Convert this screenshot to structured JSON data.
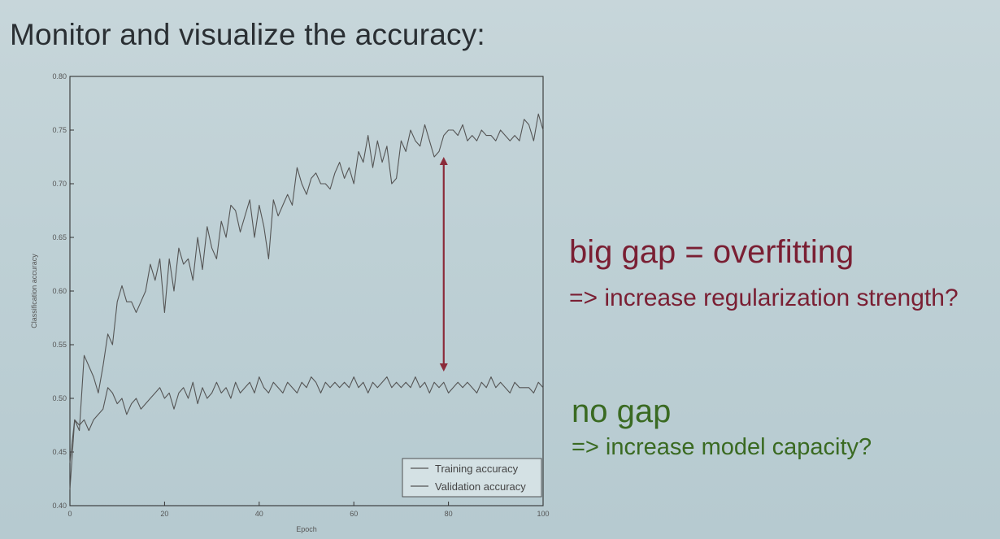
{
  "slide": {
    "title": "Monitor and visualize the accuracy:"
  },
  "annotations": {
    "overfit_title": "big gap = overfitting",
    "overfit_sub": "=> increase regularization strength?",
    "nogap_title": "no gap",
    "nogap_sub": "=> increase model capacity?"
  },
  "colors": {
    "overfit": "#7a1f33",
    "nogap": "#3a6a22",
    "arrow": "#8b2b3a",
    "line": "#555555"
  },
  "chart_data": {
    "type": "line",
    "title": "",
    "xlabel": "Epoch",
    "ylabel": "Classification accuracy",
    "xlim": [
      0,
      100
    ],
    "ylim": [
      0.4,
      0.8
    ],
    "xticks": [
      "0",
      "20",
      "40",
      "60",
      "80",
      "100"
    ],
    "yticks": [
      "0.40",
      "0.45",
      "0.50",
      "0.55",
      "0.60",
      "0.65",
      "0.70",
      "0.75",
      "0.80"
    ],
    "grid": false,
    "legend_position": "bottom-right",
    "series": [
      {
        "name": "Training accuracy",
        "x": [
          0,
          1,
          2,
          3,
          4,
          5,
          6,
          7,
          8,
          9,
          10,
          11,
          12,
          13,
          14,
          15,
          16,
          17,
          18,
          19,
          20,
          21,
          22,
          23,
          24,
          25,
          26,
          27,
          28,
          29,
          30,
          31,
          32,
          33,
          34,
          35,
          36,
          37,
          38,
          39,
          40,
          41,
          42,
          43,
          44,
          45,
          46,
          47,
          48,
          49,
          50,
          51,
          52,
          53,
          54,
          55,
          56,
          57,
          58,
          59,
          60,
          61,
          62,
          63,
          64,
          65,
          66,
          67,
          68,
          69,
          70,
          71,
          72,
          73,
          74,
          75,
          76,
          77,
          78,
          79,
          80,
          81,
          82,
          83,
          84,
          85,
          86,
          87,
          88,
          89,
          90,
          91,
          92,
          93,
          94,
          95,
          96,
          97,
          98,
          99,
          100
        ],
        "values": [
          0.415,
          0.48,
          0.47,
          0.54,
          0.53,
          0.52,
          0.505,
          0.53,
          0.56,
          0.55,
          0.59,
          0.605,
          0.59,
          0.59,
          0.58,
          0.59,
          0.6,
          0.625,
          0.61,
          0.63,
          0.58,
          0.63,
          0.6,
          0.64,
          0.625,
          0.63,
          0.61,
          0.65,
          0.62,
          0.66,
          0.64,
          0.63,
          0.665,
          0.65,
          0.68,
          0.675,
          0.655,
          0.67,
          0.685,
          0.65,
          0.68,
          0.66,
          0.63,
          0.685,
          0.67,
          0.68,
          0.69,
          0.68,
          0.715,
          0.7,
          0.69,
          0.705,
          0.71,
          0.7,
          0.7,
          0.695,
          0.71,
          0.72,
          0.705,
          0.715,
          0.7,
          0.73,
          0.72,
          0.745,
          0.715,
          0.74,
          0.72,
          0.735,
          0.7,
          0.705,
          0.74,
          0.73,
          0.75,
          0.74,
          0.735,
          0.755,
          0.74,
          0.725,
          0.73,
          0.745,
          0.75,
          0.75,
          0.745,
          0.755,
          0.74,
          0.745,
          0.74,
          0.75,
          0.745,
          0.745,
          0.74,
          0.75,
          0.745,
          0.74,
          0.745,
          0.74,
          0.76,
          0.755,
          0.74,
          0.765,
          0.75
        ]
      },
      {
        "name": "Validation accuracy",
        "x": [
          0,
          1,
          2,
          3,
          4,
          5,
          6,
          7,
          8,
          9,
          10,
          11,
          12,
          13,
          14,
          15,
          16,
          17,
          18,
          19,
          20,
          21,
          22,
          23,
          24,
          25,
          26,
          27,
          28,
          29,
          30,
          31,
          32,
          33,
          34,
          35,
          36,
          37,
          38,
          39,
          40,
          41,
          42,
          43,
          44,
          45,
          46,
          47,
          48,
          49,
          50,
          51,
          52,
          53,
          54,
          55,
          56,
          57,
          58,
          59,
          60,
          61,
          62,
          63,
          64,
          65,
          66,
          67,
          68,
          69,
          70,
          71,
          72,
          73,
          74,
          75,
          76,
          77,
          78,
          79,
          80,
          81,
          82,
          83,
          84,
          85,
          86,
          87,
          88,
          89,
          90,
          91,
          92,
          93,
          94,
          95,
          96,
          97,
          98,
          99,
          100
        ],
        "values": [
          0.44,
          0.48,
          0.475,
          0.48,
          0.47,
          0.48,
          0.485,
          0.49,
          0.51,
          0.505,
          0.495,
          0.5,
          0.485,
          0.495,
          0.5,
          0.49,
          0.495,
          0.5,
          0.505,
          0.51,
          0.5,
          0.505,
          0.49,
          0.505,
          0.51,
          0.5,
          0.515,
          0.495,
          0.51,
          0.5,
          0.505,
          0.515,
          0.505,
          0.51,
          0.5,
          0.515,
          0.505,
          0.51,
          0.515,
          0.505,
          0.52,
          0.51,
          0.505,
          0.515,
          0.51,
          0.505,
          0.515,
          0.51,
          0.505,
          0.515,
          0.51,
          0.52,
          0.515,
          0.505,
          0.515,
          0.51,
          0.515,
          0.51,
          0.515,
          0.51,
          0.52,
          0.51,
          0.515,
          0.505,
          0.515,
          0.51,
          0.515,
          0.52,
          0.51,
          0.515,
          0.51,
          0.515,
          0.51,
          0.52,
          0.51,
          0.515,
          0.505,
          0.515,
          0.51,
          0.515,
          0.505,
          0.51,
          0.515,
          0.51,
          0.515,
          0.51,
          0.505,
          0.515,
          0.51,
          0.52,
          0.51,
          0.515,
          0.51,
          0.505,
          0.515,
          0.51,
          0.51,
          0.51,
          0.505,
          0.515,
          0.51
        ]
      }
    ],
    "arrow": {
      "x": 79,
      "y_top": 0.725,
      "y_bottom": 0.525
    }
  }
}
